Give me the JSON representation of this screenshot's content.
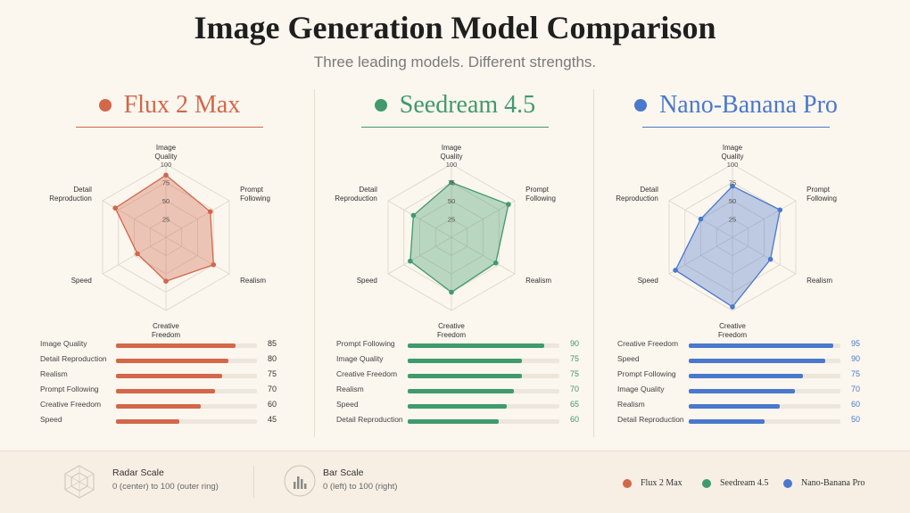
{
  "title": "Image Generation Model Comparison",
  "subtitle": "Three leading models. Different strengths.",
  "colors": {
    "flux": "#d2674a",
    "seedream": "#3f9a6c",
    "nano": "#4a78cc"
  },
  "chart_data": [
    {
      "type": "radar",
      "title": "Flux 2 Max",
      "axes": [
        "Image Quality",
        "Prompt Following",
        "Realism",
        "Creative Freedom",
        "Speed",
        "Detail Reproduction"
      ],
      "tick_labels": [
        "100",
        "75",
        "50",
        "25"
      ],
      "range": [
        0,
        100
      ],
      "values": [
        85,
        70,
        75,
        60,
        45,
        80
      ],
      "bars": {
        "categories": [
          "Image Quality",
          "Detail Reproduction",
          "Realism",
          "Prompt Following",
          "Creative Freedom",
          "Speed"
        ],
        "values": [
          85,
          80,
          75,
          70,
          60,
          45
        ]
      }
    },
    {
      "type": "radar",
      "title": "Seedream 4.5",
      "axes": [
        "Image Quality",
        "Prompt Following",
        "Realism",
        "Creative Freedom",
        "Speed",
        "Detail Reproduction"
      ],
      "tick_labels": [
        "100",
        "75",
        "50",
        "25"
      ],
      "range": [
        0,
        100
      ],
      "values": [
        75,
        90,
        70,
        75,
        65,
        60
      ],
      "bars": {
        "categories": [
          "Prompt Following",
          "Image Quality",
          "Creative Freedom",
          "Realism",
          "Speed",
          "Detail Reproduction"
        ],
        "values": [
          90,
          75,
          75,
          70,
          65,
          60
        ]
      }
    },
    {
      "type": "radar",
      "title": "Nano-Banana Pro",
      "axes": [
        "Image Quality",
        "Prompt Following",
        "Realism",
        "Creative Freedom",
        "Speed",
        "Detail Reproduction"
      ],
      "tick_labels": [
        "100",
        "75",
        "50",
        "25"
      ],
      "range": [
        0,
        100
      ],
      "values": [
        70,
        75,
        60,
        95,
        90,
        50
      ],
      "bars": {
        "categories": [
          "Creative Freedom",
          "Speed",
          "Prompt Following",
          "Image  Quality",
          "Realism",
          "Detail Reproduction"
        ],
        "values": [
          95,
          90,
          75,
          70,
          60,
          50
        ]
      }
    }
  ],
  "footer": {
    "radar_scale_title": "Radar Scale",
    "radar_scale_desc": "0 (center) to 100 (outer ring)",
    "bar_scale_title": "Bar Scale",
    "bar_scale_desc": "0 (left) to 100 (right)",
    "legend": [
      "Flux 2 Max",
      "Seedream 4.5",
      "Nano-Banana Pro"
    ]
  }
}
